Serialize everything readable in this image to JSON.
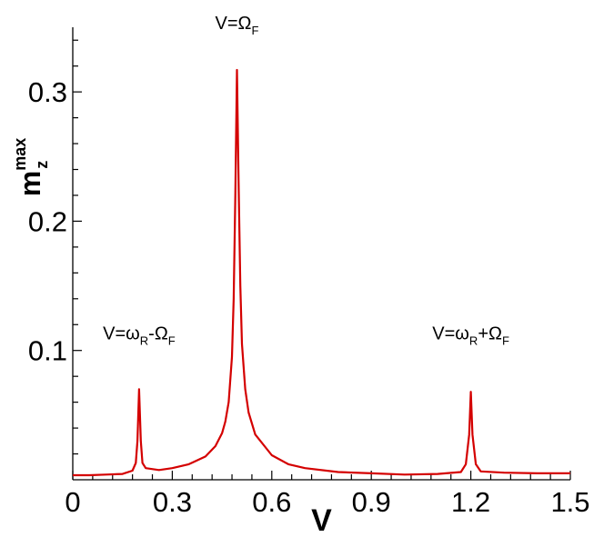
{
  "chart_data": {
    "type": "line",
    "xlabel": "V",
    "ylabel": {
      "base": "m",
      "sub": "z",
      "sup": "max"
    },
    "xlim": [
      0,
      1.5
    ],
    "ylim": [
      0,
      0.35
    ],
    "x_ticks": [
      0,
      0.3,
      0.6,
      0.9,
      1.2,
      1.5
    ],
    "x_tick_labels": [
      "0",
      "0.3",
      "0.6",
      "0.9",
      "1.2",
      "1.5"
    ],
    "y_ticks": [
      0.1,
      0.2,
      0.3
    ],
    "y_tick_labels": [
      "0.1",
      "0.2",
      "0.3"
    ],
    "grid": false,
    "line_color": "#d40000",
    "series": [
      {
        "values": [
          {
            "x": 0.0,
            "y": 0.0035
          },
          {
            "x": 0.05,
            "y": 0.0035
          },
          {
            "x": 0.1,
            "y": 0.004
          },
          {
            "x": 0.15,
            "y": 0.0045
          },
          {
            "x": 0.18,
            "y": 0.007
          },
          {
            "x": 0.19,
            "y": 0.013
          },
          {
            "x": 0.195,
            "y": 0.03
          },
          {
            "x": 0.2,
            "y": 0.07
          },
          {
            "x": 0.205,
            "y": 0.03
          },
          {
            "x": 0.21,
            "y": 0.013
          },
          {
            "x": 0.22,
            "y": 0.009
          },
          {
            "x": 0.26,
            "y": 0.0075
          },
          {
            "x": 0.3,
            "y": 0.009
          },
          {
            "x": 0.35,
            "y": 0.012
          },
          {
            "x": 0.4,
            "y": 0.018
          },
          {
            "x": 0.43,
            "y": 0.026
          },
          {
            "x": 0.45,
            "y": 0.036
          },
          {
            "x": 0.46,
            "y": 0.045
          },
          {
            "x": 0.47,
            "y": 0.06
          },
          {
            "x": 0.48,
            "y": 0.095
          },
          {
            "x": 0.485,
            "y": 0.14
          },
          {
            "x": 0.49,
            "y": 0.22
          },
          {
            "x": 0.495,
            "y": 0.317
          },
          {
            "x": 0.5,
            "y": 0.23
          },
          {
            "x": 0.505,
            "y": 0.15
          },
          {
            "x": 0.51,
            "y": 0.105
          },
          {
            "x": 0.52,
            "y": 0.07
          },
          {
            "x": 0.53,
            "y": 0.052
          },
          {
            "x": 0.55,
            "y": 0.035
          },
          {
            "x": 0.6,
            "y": 0.019
          },
          {
            "x": 0.65,
            "y": 0.012
          },
          {
            "x": 0.7,
            "y": 0.009
          },
          {
            "x": 0.8,
            "y": 0.006
          },
          {
            "x": 0.9,
            "y": 0.005
          },
          {
            "x": 1.0,
            "y": 0.004
          },
          {
            "x": 1.1,
            "y": 0.0045
          },
          {
            "x": 1.17,
            "y": 0.006
          },
          {
            "x": 1.185,
            "y": 0.012
          },
          {
            "x": 1.195,
            "y": 0.035
          },
          {
            "x": 1.2,
            "y": 0.068
          },
          {
            "x": 1.205,
            "y": 0.035
          },
          {
            "x": 1.215,
            "y": 0.012
          },
          {
            "x": 1.23,
            "y": 0.0065
          },
          {
            "x": 1.3,
            "y": 0.0055
          },
          {
            "x": 1.4,
            "y": 0.005
          },
          {
            "x": 1.5,
            "y": 0.005
          }
        ]
      }
    ],
    "annotations": [
      {
        "text": "V=ω",
        "sub1": "R",
        "mid": "-Ω",
        "sub2": "F",
        "x": 0.2,
        "y": 0.1
      },
      {
        "text": "V=Ω",
        "sub1": "F",
        "mid": "",
        "sub2": "",
        "x": 0.495,
        "y": 0.34
      },
      {
        "text": "V=ω",
        "sub1": "R",
        "mid": "+Ω",
        "sub2": "F",
        "x": 1.2,
        "y": 0.1
      }
    ]
  }
}
